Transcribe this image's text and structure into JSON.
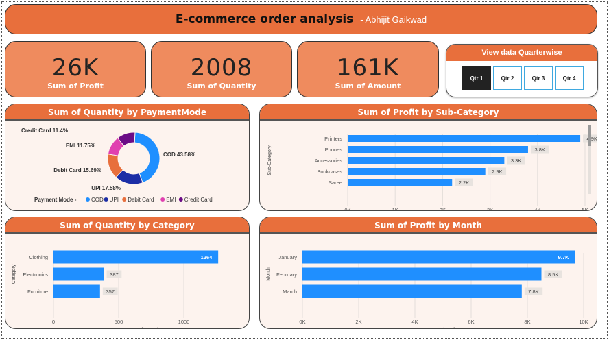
{
  "header": {
    "title": "E-commerce order analysis",
    "subtitle": "- Abhijit Gaikwad"
  },
  "kpis": [
    {
      "value": "26K",
      "label": "Sum of Profit"
    },
    {
      "value": "2008",
      "label": "Sum of Quantity"
    },
    {
      "value": "161K",
      "label": "Sum of Amount"
    }
  ],
  "slicer": {
    "title": "View data Quarterwise",
    "options": [
      "Qtr 1",
      "Qtr 2",
      "Qtr 3",
      "Qtr 4"
    ],
    "selected": "Qtr 1"
  },
  "colors": {
    "accent": "#e86f3c",
    "bar": "#1f8fff"
  },
  "panels": {
    "payment": {
      "title": "Sum of Quantity by PaymentMode",
      "legend_title": "Payment Mode",
      "slice_labels": [
        "COD 43.58%",
        "UPI 17.58%",
        "Debit Card 15.69%",
        "EMI 11.75%",
        "Credit Card 11.4%"
      ]
    },
    "subcat": {
      "title": "Sum of Profit by Sub-Category"
    },
    "category": {
      "title": "Sum of Quantity by Category"
    },
    "month": {
      "title": "Sum of Profit by Month"
    }
  },
  "chart_data": [
    {
      "type": "pie",
      "donut": true,
      "categories": [
        "COD",
        "UPI",
        "Debit Card",
        "EMI",
        "Credit Card"
      ],
      "values": [
        43.58,
        17.58,
        15.69,
        11.75,
        11.4
      ],
      "colors": [
        "#1f8fff",
        "#1c2ea6",
        "#e86f3c",
        "#e040b0",
        "#6b0c86"
      ],
      "title": "Sum of Quantity by PaymentMode",
      "legend": "bottom"
    },
    {
      "type": "bar",
      "orientation": "horizontal",
      "categories": [
        "Printers",
        "Phones",
        "Accessories",
        "Bookcases",
        "Saree"
      ],
      "values": [
        4.9,
        3.8,
        3.3,
        2.9,
        2.2
      ],
      "data_labels": [
        "4.9K",
        "3.8K",
        "3.3K",
        "2.9K",
        "2.2K"
      ],
      "ticks": [
        "0K",
        "1K",
        "2K",
        "3K",
        "4K",
        "5K"
      ],
      "xlim": [
        0,
        5
      ],
      "xlabel": "Sum of Profit",
      "ylabel": "Sub-Category",
      "title": "Sum of Profit by Sub-Category"
    },
    {
      "type": "bar",
      "orientation": "horizontal",
      "categories": [
        "Clothing",
        "Electronics",
        "Furniture"
      ],
      "values": [
        1264,
        387,
        357
      ],
      "data_labels": [
        "1264",
        "387",
        "357"
      ],
      "ticks": [
        "0",
        "500",
        "1000"
      ],
      "xlim": [
        0,
        1400
      ],
      "xlabel": "Sum of Quantity",
      "ylabel": "Category",
      "title": "Sum of Quantity by Category"
    },
    {
      "type": "bar",
      "orientation": "horizontal",
      "categories": [
        "January",
        "February",
        "March"
      ],
      "values": [
        9.7,
        8.5,
        7.8
      ],
      "data_labels": [
        "9.7K",
        "8.5K",
        "7.8K"
      ],
      "ticks": [
        "0K",
        "2K",
        "4K",
        "6K",
        "8K",
        "10K"
      ],
      "xlim": [
        0,
        10
      ],
      "xlabel": "Sum of Profit",
      "ylabel": "Month",
      "title": "Sum of Profit by Month"
    }
  ]
}
